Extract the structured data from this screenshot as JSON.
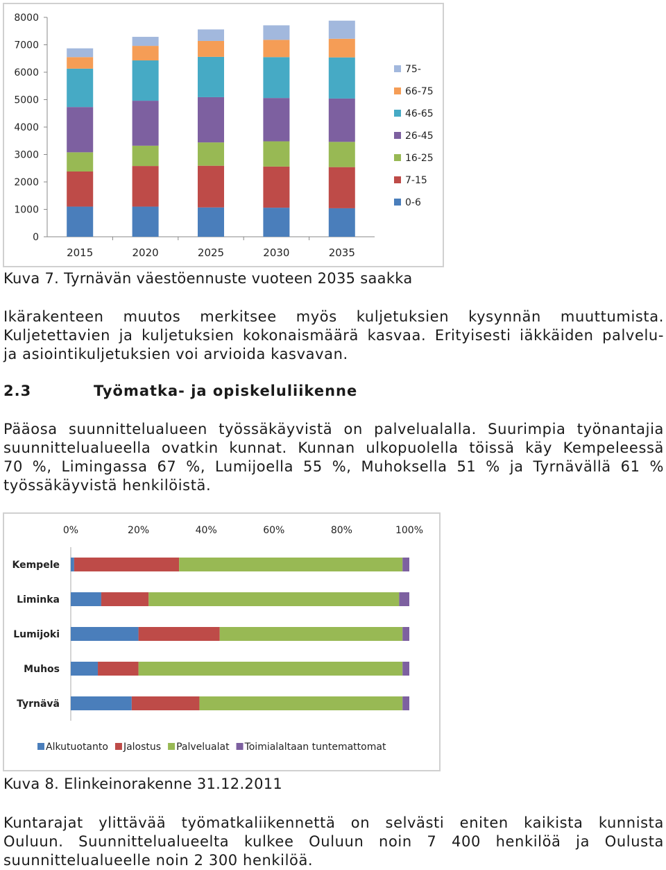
{
  "figure1": {
    "caption": "Kuva 7. Tyrnävän väestöennuste vuoteen 2035 saakka",
    "chart_data": {
      "type": "bar",
      "stacked": true,
      "categories": [
        "2015",
        "2020",
        "2025",
        "2030",
        "2035"
      ],
      "ylim": [
        0,
        8000
      ],
      "yticks": [
        "0",
        "1000",
        "2000",
        "3000",
        "4000",
        "5000",
        "6000",
        "7000",
        "8000"
      ],
      "legend_position": "right",
      "series": [
        {
          "name": "0-6",
          "color": "#4a7ebb",
          "values": [
            1100,
            1100,
            1070,
            1060,
            1040
          ]
        },
        {
          "name": "7-15",
          "color": "#be4b48",
          "values": [
            1280,
            1480,
            1520,
            1500,
            1500
          ]
        },
        {
          "name": "16-25",
          "color": "#98b954",
          "values": [
            700,
            740,
            850,
            920,
            920
          ]
        },
        {
          "name": "26-45",
          "color": "#7d60a0",
          "values": [
            1650,
            1640,
            1650,
            1580,
            1580
          ]
        },
        {
          "name": "46-65",
          "color": "#46aac5",
          "values": [
            1400,
            1470,
            1470,
            1490,
            1500
          ]
        },
        {
          "name": "66-75",
          "color": "#f59d56",
          "values": [
            420,
            530,
            580,
            630,
            680
          ]
        },
        {
          "name": "75-",
          "color": "#a2b8dd",
          "values": [
            320,
            330,
            420,
            530,
            660
          ]
        }
      ]
    }
  },
  "para1": {
    "lines": [
      "Ikärakenteen muutos merkitsee myös kuljetuksien kysynnän muuttumista.",
      "Kuljetettavien ja kuljetuksien kokonaismäärä kasvaa. Erityisesti iäkkäiden palvelu-",
      "ja asiointikuljetuksien voi arvioida kasvavan."
    ]
  },
  "section": {
    "number": "2.3",
    "title": "Työmatka- ja opiskeluliikenne"
  },
  "para2": {
    "lines": [
      "Pääosa suunnittelualueen työssäkäyvistä on palvelualalla. Suurimpia työnantajia",
      "suunnittelualueella ovatkin kunnat. Kunnan ulkopuolella töissä käy Kempeleessä",
      "70 %, Limingassa 67 %, Lumijoella 55 %, Muhoksella 51 % ja Tyrnävällä 61 %",
      "työssäkäyvistä henkilöistä."
    ]
  },
  "figure2": {
    "caption": "Kuva 8. Elinkeinorakenne 31.12.2011",
    "chart_data": {
      "type": "bar",
      "orientation": "horizontal",
      "stacked_percent": true,
      "categories": [
        "Kempele",
        "Liminka",
        "Lumijoki",
        "Muhos",
        "Tyrnävä"
      ],
      "xticks": [
        "0%",
        "20%",
        "40%",
        "60%",
        "80%",
        "100%"
      ],
      "xlim": [
        0,
        100
      ],
      "legend_position": "bottom",
      "series": [
        {
          "name": "Alkutuotanto",
          "color": "#4a7ebb",
          "values": [
            1,
            9,
            20,
            8,
            18
          ]
        },
        {
          "name": "Jalostus",
          "color": "#be4b48",
          "values": [
            31,
            14,
            24,
            12,
            20
          ]
        },
        {
          "name": "Palvelualat",
          "color": "#98b954",
          "values": [
            66,
            74,
            54,
            78,
            60
          ]
        },
        {
          "name": "Toimialaltaan tuntemattomat",
          "color": "#7d60a0",
          "values": [
            2,
            3,
            2,
            2,
            2
          ]
        }
      ]
    }
  },
  "para3": {
    "lines": [
      "Kuntarajat ylittävää työmatkaliikennettä on selvästi eniten kaikista kunnista",
      "Ouluun. Suunnittelualueelta kulkee Ouluun noin 7 400 henkilöä ja Oulusta",
      "suunnittelualueelle noin 2 300 henkilöä."
    ]
  }
}
